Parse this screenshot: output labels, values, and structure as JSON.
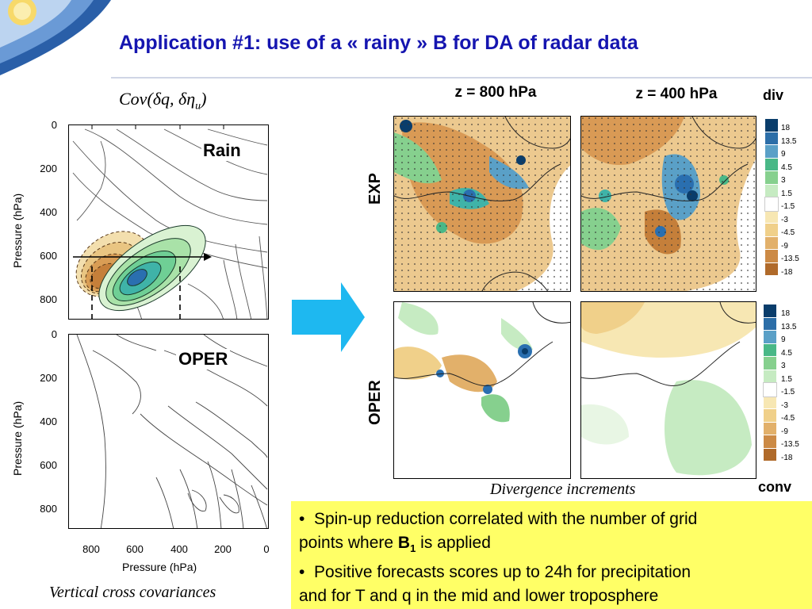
{
  "slide": {
    "title": "Application  #1: use of a « rainy » B for DA of radar data"
  },
  "left": {
    "cov_title": "Cov(δq, δη",
    "cov_sub": "u",
    "cov_close": ")",
    "top_label": "Rain",
    "bottom_label": "OPER",
    "y_axis_title": "Pressure (hPa)",
    "x_axis_title": "Pressure (hPa)",
    "y_ticks": [
      "0",
      "200",
      "400",
      "600",
      "800"
    ],
    "x_ticks": [
      "800",
      "600",
      "400",
      "200",
      "0"
    ],
    "caption": "Vertical cross covariances"
  },
  "maps": {
    "col_800": "z = 800 hPa",
    "col_400": "z = 400 hPa",
    "row_exp": "EXP",
    "row_oper": "OPER",
    "caption": "Divergence increments"
  },
  "colorbar": {
    "top_title": "div",
    "bottom_title": "conv",
    "levels": [
      "18",
      "13.5",
      "9",
      "4.5",
      "3",
      "1.5",
      "-1.5",
      "-3",
      "-4.5",
      "-9",
      "-13.5",
      "-18"
    ],
    "colors": [
      "#0a3d6b",
      "#2c6ea8",
      "#5aa0c7",
      "#49b887",
      "#86d08e",
      "#c6ebc2",
      "#ffffff",
      "#f7e7b3",
      "#f0d08a",
      "#e2b06a",
      "#cc8a45",
      "#b06a2a"
    ]
  },
  "bullets": {
    "b1_a": "Spin-up reduction correlated with the number of grid",
    "b1_b": "points where ",
    "b1_bold": "B",
    "b1_sub": "1",
    "b1_c": " is applied",
    "b2_a": "Positive forecasts scores up to 24h for precipitation",
    "b2_b": "and  for T and q in the mid and lower troposphere"
  }
}
